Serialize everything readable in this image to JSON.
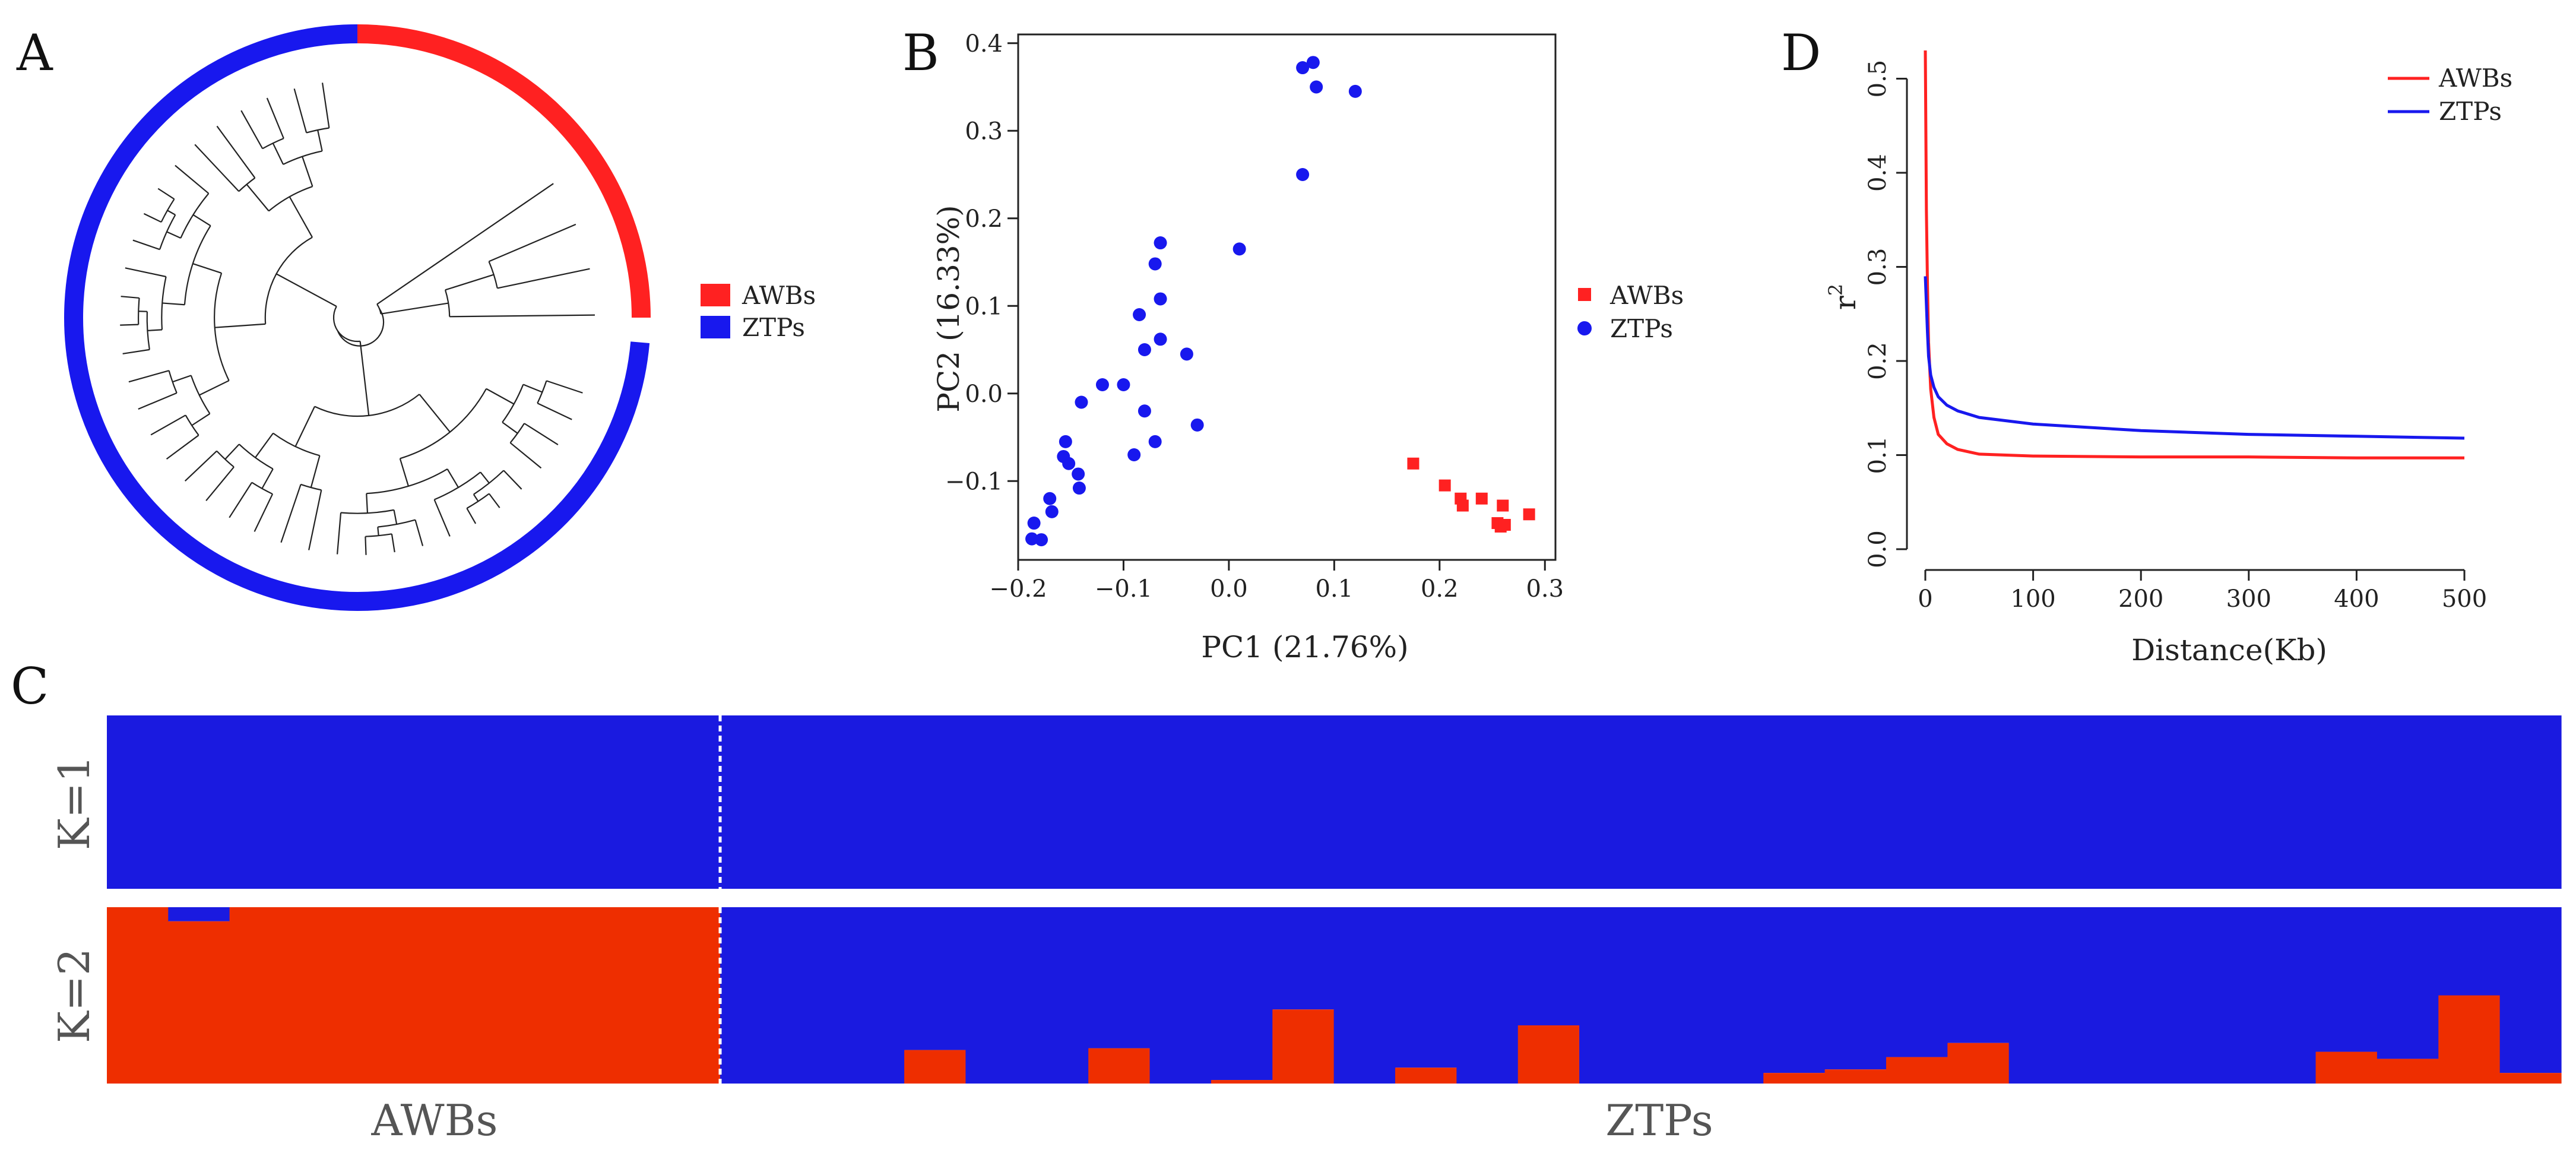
{
  "panels": {
    "A": "A",
    "B": "B",
    "C": "C",
    "D": "D"
  },
  "colors": {
    "awb": "#ff2121",
    "ztp": "#1818ee",
    "k_awb": "#ee2e00",
    "k_ztp": "#1a1ae0"
  },
  "chart_data": [
    {
      "id": "A",
      "type": "dendrogram",
      "title": "",
      "legend": [
        "AWBs",
        "ZTPs"
      ],
      "legend_position": "right",
      "groups": [
        {
          "name": "AWBs",
          "arc_deg": [
            0,
            90
          ]
        },
        {
          "name": "ZTPs",
          "arc_deg": [
            95,
            360
          ]
        }
      ]
    },
    {
      "id": "B",
      "type": "scatter",
      "xlabel": "PC1 (21.76%)",
      "ylabel": "PC2 (16.33%)",
      "xlim": [
        -0.2,
        0.31
      ],
      "ylim": [
        -0.19,
        0.41
      ],
      "xticks": [
        -0.2,
        -0.1,
        0.0,
        0.1,
        0.2,
        0.3
      ],
      "xtick_labels": [
        "−0.2",
        "−0.1",
        "0.0",
        "0.1",
        "0.2",
        "0.3"
      ],
      "yticks": [
        -0.1,
        0.0,
        0.1,
        0.2,
        0.3,
        0.4
      ],
      "ytick_labels": [
        "−0.1",
        "0.0",
        "0.1",
        "0.2",
        "0.3",
        "0.4"
      ],
      "legend": [
        "AWBs",
        "ZTPs"
      ],
      "legend_position": "right",
      "series": [
        {
          "name": "AWBs",
          "marker": "square",
          "points": [
            [
              0.175,
              -0.08
            ],
            [
              0.205,
              -0.105
            ],
            [
              0.22,
              -0.12
            ],
            [
              0.222,
              -0.128
            ],
            [
              0.24,
              -0.12
            ],
            [
              0.255,
              -0.148
            ],
            [
              0.258,
              -0.152
            ],
            [
              0.26,
              -0.128
            ],
            [
              0.262,
              -0.15
            ],
            [
              0.285,
              -0.138
            ]
          ]
        },
        {
          "name": "ZTPs",
          "marker": "circle",
          "points": [
            [
              0.07,
              0.372
            ],
            [
              0.08,
              0.378
            ],
            [
              0.083,
              0.35
            ],
            [
              0.12,
              0.345
            ],
            [
              0.07,
              0.25
            ],
            [
              0.01,
              0.165
            ],
            [
              -0.065,
              0.172
            ],
            [
              -0.07,
              0.148
            ],
            [
              -0.065,
              0.108
            ],
            [
              -0.085,
              0.09
            ],
            [
              -0.065,
              0.062
            ],
            [
              -0.08,
              0.05
            ],
            [
              -0.04,
              0.045
            ],
            [
              -0.1,
              0.01
            ],
            [
              -0.12,
              0.01
            ],
            [
              -0.14,
              -0.01
            ],
            [
              -0.08,
              -0.02
            ],
            [
              -0.03,
              -0.036
            ],
            [
              -0.07,
              -0.055
            ],
            [
              -0.155,
              -0.055
            ],
            [
              -0.09,
              -0.07
            ],
            [
              -0.157,
              -0.072
            ],
            [
              -0.152,
              -0.08
            ],
            [
              -0.143,
              -0.092
            ],
            [
              -0.142,
              -0.108
            ],
            [
              -0.17,
              -0.12
            ],
            [
              -0.168,
              -0.135
            ],
            [
              -0.185,
              -0.148
            ],
            [
              -0.187,
              -0.166
            ],
            [
              -0.178,
              -0.167
            ]
          ]
        }
      ]
    },
    {
      "id": "D",
      "type": "line",
      "xlabel": "Distance(Kb)",
      "ylabel": "r",
      "ylabel_sup": "2",
      "xlim": [
        0,
        500
      ],
      "ylim": [
        0.0,
        0.53
      ],
      "xticks": [
        0,
        100,
        200,
        300,
        400,
        500
      ],
      "yticks": [
        0.0,
        0.1,
        0.2,
        0.3,
        0.4,
        0.5
      ],
      "ytick_labels": [
        "0.0",
        "0.1",
        "0.2",
        "0.3",
        "0.4",
        "0.5"
      ],
      "legend": [
        "AWBs",
        "ZTPs"
      ],
      "legend_position": "top-right",
      "series": [
        {
          "name": "AWBs",
          "x": [
            0,
            1,
            2,
            3,
            5,
            8,
            12,
            20,
            30,
            50,
            100,
            200,
            300,
            400,
            500
          ],
          "y": [
            0.53,
            0.36,
            0.28,
            0.22,
            0.17,
            0.14,
            0.122,
            0.112,
            0.106,
            0.101,
            0.099,
            0.098,
            0.098,
            0.097,
            0.097
          ]
        },
        {
          "name": "ZTPs",
          "x": [
            0,
            1,
            2,
            3,
            5,
            8,
            12,
            20,
            30,
            50,
            100,
            200,
            300,
            400,
            500
          ],
          "y": [
            0.29,
            0.26,
            0.23,
            0.205,
            0.185,
            0.172,
            0.162,
            0.153,
            0.147,
            0.14,
            0.133,
            0.126,
            0.122,
            0.12,
            0.118
          ]
        }
      ]
    },
    {
      "id": "C",
      "type": "bar",
      "stacked": true,
      "rows": [
        "K=1",
        "K=2"
      ],
      "group_labels": [
        "AWBs",
        "ZTPs"
      ],
      "n_awb": 10,
      "n_ztp": 30,
      "k1_awb_fraction": [
        0,
        0,
        0,
        0,
        0,
        0,
        0,
        0,
        0,
        0,
        0,
        0,
        0,
        0,
        0,
        0,
        0,
        0,
        0,
        0,
        0,
        0,
        0,
        0,
        0,
        0,
        0,
        0,
        0,
        0,
        0,
        0,
        0,
        0,
        0,
        0,
        0,
        0,
        0,
        0
      ],
      "k2_awb_fraction": [
        1.0,
        0.92,
        1.0,
        1.0,
        1.0,
        1.0,
        1.0,
        1.0,
        1.0,
        1.0,
        0.0,
        0.0,
        0.0,
        0.19,
        0.0,
        0.0,
        0.2,
        0.0,
        0.02,
        0.42,
        0.0,
        0.09,
        0.0,
        0.33,
        0.0,
        0.0,
        0.0,
        0.06,
        0.08,
        0.15,
        0.23,
        0.0,
        0.0,
        0.0,
        0.0,
        0.0,
        0.18,
        0.14,
        0.5,
        0.06
      ]
    }
  ]
}
